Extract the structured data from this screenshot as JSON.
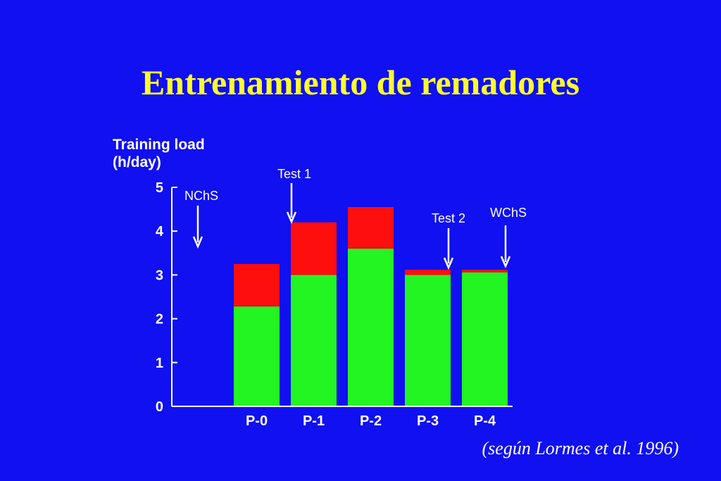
{
  "slide": {
    "title": "Entrenamiento de remadores",
    "citation": "(según Lormes et al. 1996)"
  },
  "colors": {
    "background": "#1010f0",
    "title": "#ffff2a",
    "lower_segment": "#22f522",
    "upper_segment": "#ff0e0e",
    "text": "#ffffff"
  },
  "chart_data": {
    "type": "bar",
    "stacked": true,
    "ylabel_lines": [
      "Training load",
      "(h/day)"
    ],
    "ylim": [
      0,
      5
    ],
    "yticks": [
      0,
      1,
      2,
      3,
      4,
      5
    ],
    "categories": [
      "P-0",
      "P-1",
      "P-2",
      "P-3",
      "P-4"
    ],
    "series": [
      {
        "color": "#22f522",
        "values": [
          2.28,
          3.0,
          3.6,
          3.0,
          3.06
        ]
      },
      {
        "color": "#ff0e0e",
        "values": [
          0.97,
          1.2,
          0.95,
          0.12,
          0.06
        ]
      }
    ],
    "annotations": [
      {
        "text": "NChS",
        "position": "before P-0"
      },
      {
        "text": "Test 1",
        "position": "P-1"
      },
      {
        "text": "Test 2",
        "position": "P-3"
      },
      {
        "text": "WChS",
        "position": "P-4"
      }
    ],
    "legend": "none",
    "grid": false
  }
}
